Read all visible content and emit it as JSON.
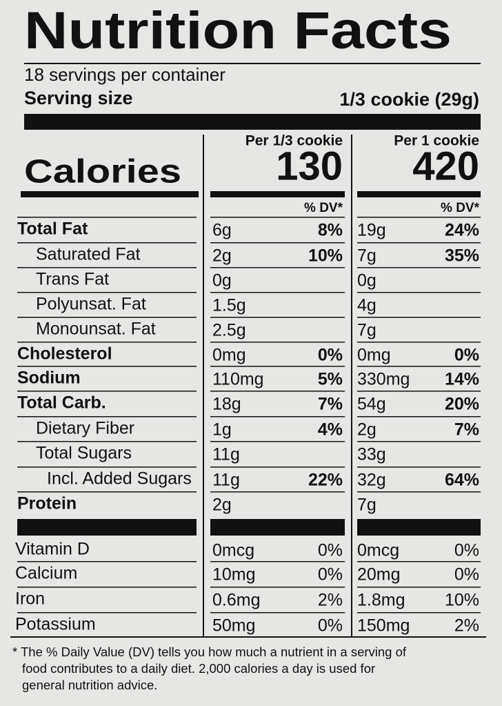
{
  "title": "Nutrition Facts",
  "servings": "18 servings per container",
  "serving_size": {
    "label": "Serving size",
    "value": "1/3 cookie (29g)"
  },
  "columns": [
    "Per 1/3 cookie",
    "Per 1 cookie"
  ],
  "calories": {
    "label": "Calories",
    "values": [
      130,
      420
    ]
  },
  "dv_headers": [
    "% DV*",
    "% DV*"
  ],
  "nutrients": [
    {
      "name": "Total Fat",
      "values": [
        "6g",
        "8%",
        "19g",
        "24%"
      ]
    },
    {
      "name": "Saturated Fat",
      "values": [
        "2g",
        "10%",
        "7g",
        "35%"
      ]
    },
    {
      "name": "Trans Fat",
      "values": [
        "0g",
        null,
        "0g",
        null
      ]
    },
    {
      "name": "Polyunsat. Fat",
      "values": [
        "1.5g",
        null,
        "4g",
        null
      ]
    },
    {
      "name": "Monounsat. Fat",
      "values": [
        "2.5g",
        null,
        "7g",
        null
      ]
    },
    {
      "name": "Cholesterol",
      "values": [
        "0mg",
        "0%",
        "0mg",
        "0%"
      ]
    },
    {
      "name": "Sodium",
      "values": [
        "110mg",
        "5%",
        "330mg",
        "14%"
      ]
    },
    {
      "name": "Total Carb.",
      "values": [
        "18g",
        "7%",
        "54g",
        "20%"
      ]
    },
    {
      "name": "Dietary Fiber",
      "values": [
        "1g",
        "4%",
        "2g",
        "7%"
      ]
    },
    {
      "name": "Total Sugars",
      "values": [
        "11g",
        null,
        "33g",
        null
      ]
    },
    {
      "name": "Incl. Added Sugars",
      "values": [
        "11g",
        "22%",
        "32g",
        "64%"
      ]
    },
    {
      "name": "Protein",
      "values": [
        "2g",
        null,
        "7g",
        null
      ]
    }
  ],
  "vitamins": [
    {
      "name": "Vitamin D",
      "values": [
        "0mcg",
        "0%",
        "0mcg",
        "0%"
      ]
    },
    {
      "name": "Calcium",
      "values": [
        "10mg",
        "0%",
        "20mg",
        "0%"
      ]
    },
    {
      "name": "Iron",
      "values": [
        "0.6mg",
        "2%",
        "1.8mg",
        "10%"
      ]
    },
    {
      "name": "Potassium",
      "values": [
        "50mg",
        "0%",
        "150mg",
        "2%"
      ]
    }
  ],
  "footnote": [
    "* The % Daily Value (DV) tells you how much a nutrient in a serving of",
    "food contributes to a daily diet. 2,000 calories a day is used for",
    "general nutrition advice."
  ]
}
